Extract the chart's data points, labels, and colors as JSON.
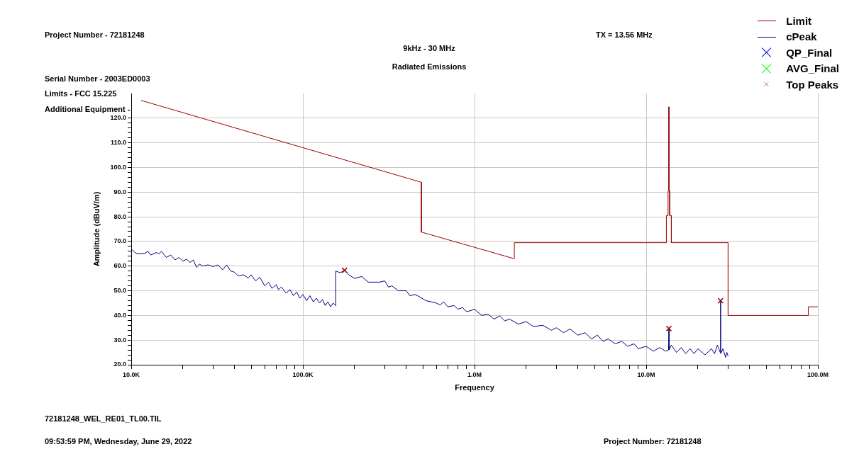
{
  "chart_data": {
    "type": "line",
    "title": "9kHz - 30 MHz",
    "subtitle": "Radiated Emissions",
    "xlabel": "Frequency",
    "ylabel": "Amplitude (dBuV/m)",
    "annotations": [
      "Project Number - 72181248",
      "Serial Number - 2003ED0003",
      "Limits - FCC 15.225",
      "Additional Equipment -",
      "TX = 13.56 MHz",
      "72181248_WEL_RE01_TL00.TIL",
      "09:53:59 PM, Wednesday, June 29, 2022",
      "Project Number: 72181248"
    ],
    "log": "x",
    "grid": true,
    "legend": "top right",
    "xlim": [
      10000,
      100000000
    ],
    "xticks": [
      {
        "value": 10000,
        "label": "10.0K"
      },
      {
        "value": 20000,
        "label": null
      },
      {
        "value": 30000,
        "label": null
      },
      {
        "value": 40000,
        "label": null
      },
      {
        "value": 50000,
        "label": null
      },
      {
        "value": 60000,
        "label": null
      },
      {
        "value": 70000,
        "label": null
      },
      {
        "value": 80000,
        "label": null
      },
      {
        "value": 90000,
        "label": null
      },
      {
        "value": 100000,
        "label": "100.0K"
      },
      {
        "value": 200000,
        "label": null
      },
      {
        "value": 300000,
        "label": null
      },
      {
        "value": 400000,
        "label": null
      },
      {
        "value": 500000,
        "label": null
      },
      {
        "value": 600000,
        "label": null
      },
      {
        "value": 700000,
        "label": null
      },
      {
        "value": 800000,
        "label": null
      },
      {
        "value": 900000,
        "label": null
      },
      {
        "value": 1000000,
        "label": "1.0M"
      },
      {
        "value": 2000000,
        "label": null
      },
      {
        "value": 3000000,
        "label": null
      },
      {
        "value": 4000000,
        "label": null
      },
      {
        "value": 5000000,
        "label": null
      },
      {
        "value": 6000000,
        "label": null
      },
      {
        "value": 7000000,
        "label": null
      },
      {
        "value": 8000000,
        "label": null
      },
      {
        "value": 9000000,
        "label": null
      },
      {
        "value": 10000000,
        "label": "10.0M"
      },
      {
        "value": 20000000,
        "label": null
      },
      {
        "value": 30000000,
        "label": null
      },
      {
        "value": 40000000,
        "label": null
      },
      {
        "value": 50000000,
        "label": null
      },
      {
        "value": 60000000,
        "label": null
      },
      {
        "value": 70000000,
        "label": null
      },
      {
        "value": 80000000,
        "label": null
      },
      {
        "value": 90000000,
        "label": null
      },
      {
        "value": 100000000,
        "label": "100.0M"
      }
    ],
    "ylim": [
      20,
      130
    ],
    "yticks": [
      {
        "value": 20,
        "label": "20.0"
      },
      {
        "value": 22,
        "label": null
      },
      {
        "value": 24,
        "label": null
      },
      {
        "value": 26,
        "label": null
      },
      {
        "value": 28,
        "label": null
      },
      {
        "value": 30,
        "label": "30.0"
      },
      {
        "value": 32,
        "label": null
      },
      {
        "value": 34,
        "label": null
      },
      {
        "value": 36,
        "label": null
      },
      {
        "value": 38,
        "label": null
      },
      {
        "value": 40,
        "label": "40.0"
      },
      {
        "value": 42,
        "label": null
      },
      {
        "value": 44,
        "label": null
      },
      {
        "value": 46,
        "label": null
      },
      {
        "value": 48,
        "label": null
      },
      {
        "value": 50,
        "label": "50.0"
      },
      {
        "value": 52,
        "label": null
      },
      {
        "value": 54,
        "label": null
      },
      {
        "value": 56,
        "label": null
      },
      {
        "value": 58,
        "label": null
      },
      {
        "value": 60,
        "label": "60.0"
      },
      {
        "value": 62,
        "label": null
      },
      {
        "value": 64,
        "label": null
      },
      {
        "value": 66,
        "label": null
      },
      {
        "value": 68,
        "label": null
      },
      {
        "value": 70,
        "label": "70.0"
      },
      {
        "value": 72,
        "label": null
      },
      {
        "value": 74,
        "label": null
      },
      {
        "value": 76,
        "label": null
      },
      {
        "value": 78,
        "label": null
      },
      {
        "value": 80,
        "label": "80.0"
      },
      {
        "value": 82,
        "label": null
      },
      {
        "value": 84,
        "label": null
      },
      {
        "value": 86,
        "label": null
      },
      {
        "value": 88,
        "label": null
      },
      {
        "value": 90,
        "label": "90.0"
      },
      {
        "value": 92,
        "label": null
      },
      {
        "value": 94,
        "label": null
      },
      {
        "value": 96,
        "label": null
      },
      {
        "value": 98,
        "label": null
      },
      {
        "value": 100,
        "label": "100.0"
      },
      {
        "value": 102,
        "label": null
      },
      {
        "value": 104,
        "label": null
      },
      {
        "value": 106,
        "label": null
      },
      {
        "value": 108,
        "label": null
      },
      {
        "value": 110,
        "label": "110.0"
      },
      {
        "value": 112,
        "label": null
      },
      {
        "value": 114,
        "label": null
      },
      {
        "value": 116,
        "label": null
      },
      {
        "value": 118,
        "label": null
      },
      {
        "value": 120,
        "label": "120.0"
      }
    ],
    "series": [
      {
        "name": "Limit",
        "type": "line",
        "marker": "none",
        "color": "#990000",
        "x": [
          11400,
          490000,
          490000,
          1705000,
          1705000,
          13110000,
          13110000,
          13410000,
          13410000,
          13553000,
          13553000,
          13567000,
          13567000,
          13710000,
          13710000,
          14010000,
          14010000,
          30000000,
          30000000,
          88000000,
          88000000,
          100000000
        ],
        "values": [
          127.2,
          94,
          73.8,
          63,
          69.5,
          69.5,
          80.5,
          80.5,
          90.5,
          90.5,
          124.6,
          124.6,
          90.5,
          90.5,
          80.5,
          80.5,
          69.5,
          69.5,
          40,
          40,
          43.5,
          43.5
        ]
      },
      {
        "name": "cPeak",
        "type": "line",
        "marker": "none",
        "color": "#000080",
        "x": [
          10000,
          10500,
          11000,
          12000,
          12500,
          13000,
          14000,
          14500,
          15000,
          16000,
          17000,
          18000,
          19000,
          20000,
          21000,
          22000,
          23000,
          24000,
          25000,
          26000,
          28000,
          30000,
          32000,
          34000,
          36000,
          38000,
          40000,
          42000,
          45000,
          48000,
          50000,
          53000,
          56000,
          60000,
          63000,
          66000,
          70000,
          72000,
          75000,
          80000,
          84000,
          88000,
          92000,
          96000,
          100000,
          105000,
          110000,
          115000,
          120000,
          125000,
          130000,
          135000,
          140000,
          145000,
          150000,
          155000,
          155500,
          165000,
          175000,
          185000,
          200000,
          220000,
          240000,
          260000,
          280000,
          300000,
          315000,
          330000,
          360000,
          400000,
          420000,
          450000,
          480000,
          520000,
          560000,
          600000,
          630000,
          660000,
          700000,
          760000,
          800000,
          850000,
          900000,
          1000000,
          1100000,
          1200000,
          1300000,
          1400000,
          1500000,
          1600000,
          1800000,
          2000000,
          2200000,
          2500000,
          2800000,
          3000000,
          3300000,
          3600000,
          4000000,
          4400000,
          4800000,
          5200000,
          5600000,
          6000000,
          6600000,
          7200000,
          7800000,
          8500000,
          9000000,
          10000000,
          11000000,
          12000000,
          13000000,
          13500000,
          13560000,
          13600000,
          14000000,
          15000000,
          16000000,
          17000000,
          18000000,
          19000000,
          20000000,
          22000000,
          24000000,
          25000000,
          26000000,
          27000000,
          27120000,
          27200000,
          28000000,
          29000000,
          29500000,
          30000000
        ],
        "values": [
          67,
          65.5,
          65,
          65.2,
          66,
          64.5,
          65.5,
          65,
          66,
          63.5,
          64.5,
          62.5,
          63.5,
          62,
          62.8,
          61.5,
          62.5,
          59.5,
          60.8,
          60,
          60.5,
          59.8,
          60.5,
          58.5,
          60.5,
          58,
          57.5,
          56,
          56.5,
          55.2,
          56.5,
          54,
          55.5,
          52,
          53.5,
          51,
          52.5,
          50.5,
          51.5,
          49,
          50.5,
          48,
          49.5,
          47,
          48.5,
          46,
          48,
          45.5,
          47,
          45,
          46.5,
          44,
          45.5,
          43.5,
          45,
          44,
          58,
          57.3,
          58.3,
          56.5,
          55,
          55.8,
          53.5,
          53.5,
          53.5,
          54,
          51.5,
          52,
          50,
          50,
          48,
          48.5,
          47.5,
          46,
          45.5,
          45,
          44.2,
          45.5,
          43.5,
          44,
          42.5,
          43.2,
          41.5,
          42.5,
          40,
          40.5,
          38.5,
          39.8,
          37.8,
          38.5,
          36.5,
          37.5,
          35.5,
          36,
          34,
          35,
          33,
          34.5,
          32,
          33,
          30.5,
          32,
          29.5,
          30.5,
          28.5,
          29.5,
          27.5,
          28.5,
          26.5,
          27.5,
          25.5,
          27,
          25.5,
          26,
          34.7,
          26,
          28,
          25,
          27,
          24.5,
          26.5,
          24.5,
          26.5,
          24,
          26.5,
          24.5,
          28,
          25,
          46,
          24.5,
          26.5,
          23,
          25,
          23.5
        ]
      },
      {
        "name": "QP_Final",
        "type": "scatter",
        "marker": "cross",
        "color": "#0000ff"
      },
      {
        "name": "AVG_Final",
        "type": "scatter",
        "marker": "cross",
        "color": "#00ff00"
      },
      {
        "name": "Top Peaks",
        "type": "scatter",
        "marker": "cross",
        "color": "#990000",
        "x": [
          175000,
          13560000,
          27120000
        ],
        "values": [
          58.3,
          34.7,
          46
        ]
      }
    ]
  }
}
